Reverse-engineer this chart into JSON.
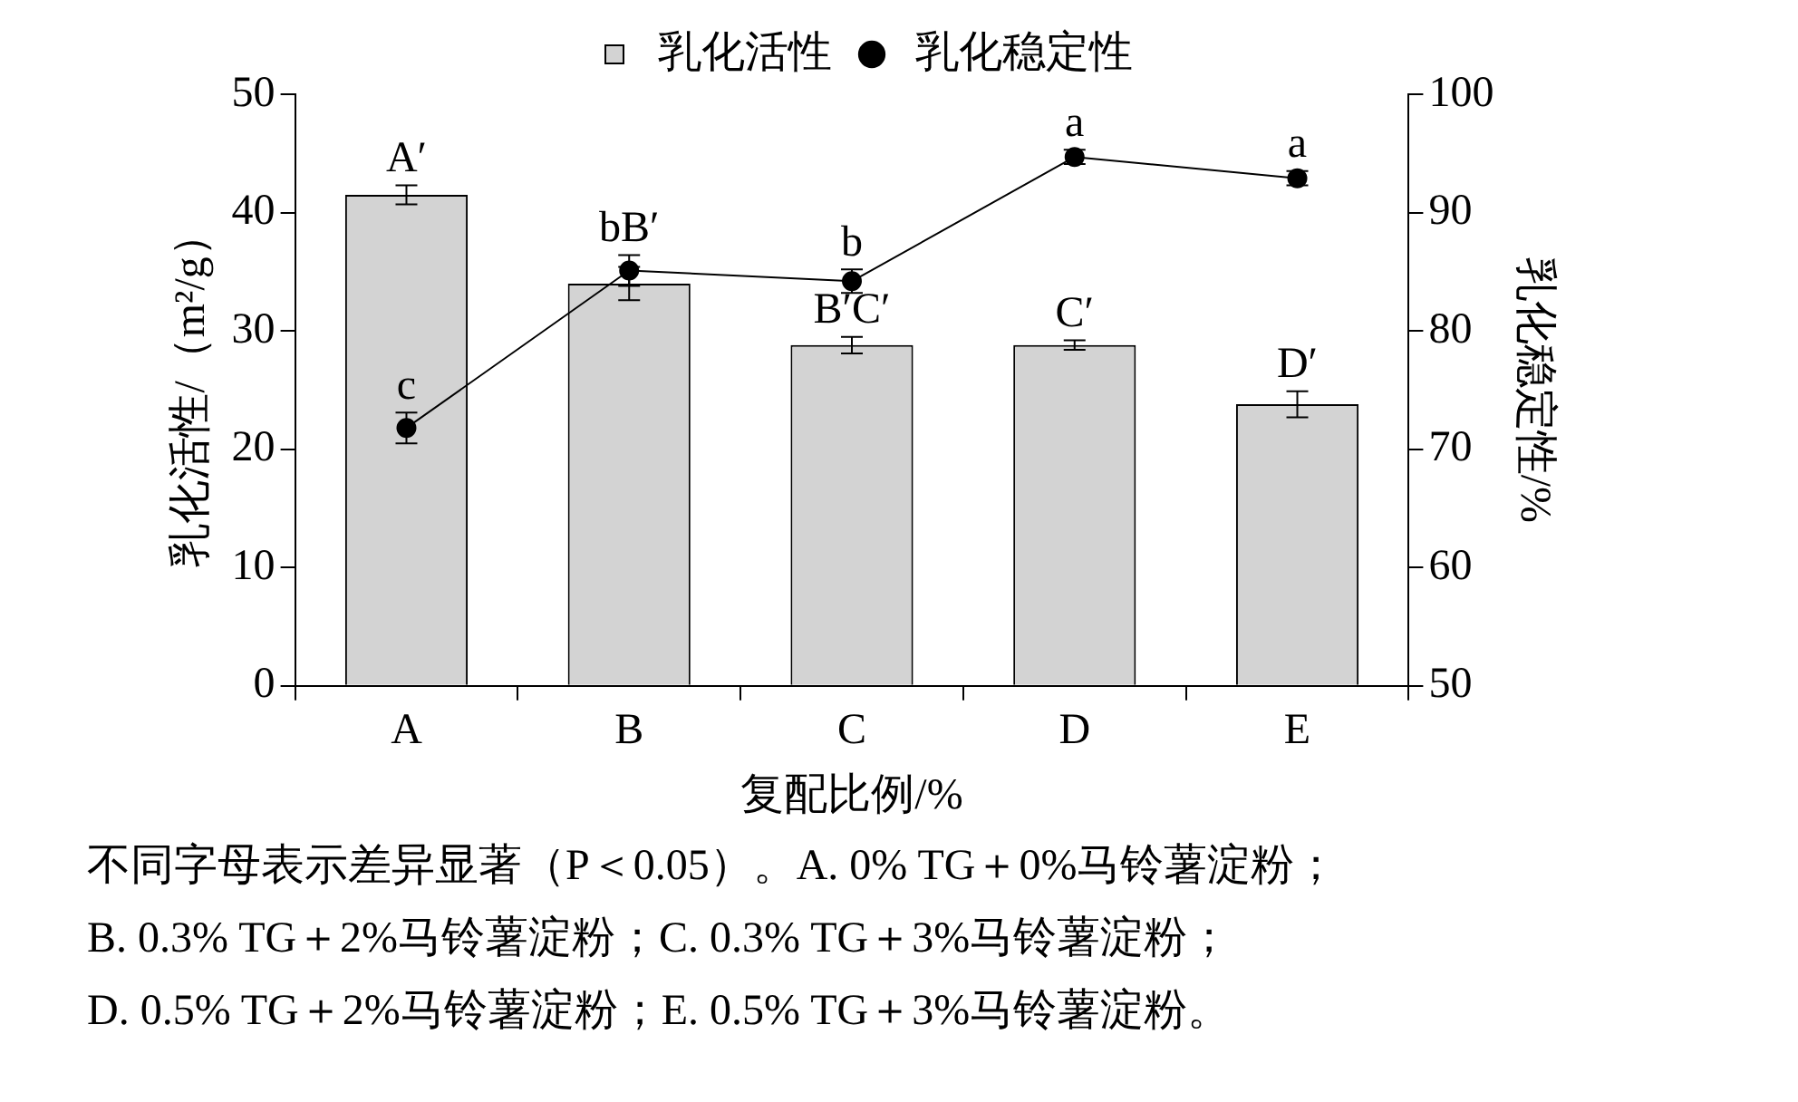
{
  "chart_data": {
    "type": "bar",
    "xlabel": "复配比例/%",
    "ylabel": "乳化活性/（m²/g）",
    "y2label": "乳化稳定性/%",
    "categories": [
      "A",
      "B",
      "C",
      "D",
      "E"
    ],
    "series": [
      {
        "name": "乳化活性",
        "color": "#d3d3d3",
        "values": [
          41.5,
          34.0,
          28.8,
          28.8,
          23.8
        ],
        "errors": [
          0.8,
          1.4,
          0.7,
          0.4,
          1.1
        ]
      },
      {
        "name": "乳化稳定性",
        "type": "line",
        "axis": "y2",
        "color": "#000000",
        "values": [
          71.8,
          85.1,
          84.2,
          94.7,
          92.9
        ],
        "errors": [
          1.3,
          1.3,
          1.0,
          0.6,
          0.6
        ],
        "marker": "circle",
        "line_style": "solid"
      }
    ],
    "ylim": [
      0,
      50
    ],
    "yticks": [
      0,
      10,
      20,
      30,
      40,
      50
    ],
    "y2lim": [
      50,
      100
    ],
    "y2ticks": [
      50,
      60,
      70,
      80,
      90,
      100
    ],
    "grid": false,
    "legend": "top",
    "annotations": [
      {
        "text": "A′",
        "x": "A",
        "y": 41.5
      },
      {
        "text": "B′C′",
        "x": "C",
        "y": 28.8
      },
      {
        "text": "C′",
        "x": "D",
        "y": 28.8
      },
      {
        "text": "D′",
        "x": "E",
        "y": 23.8
      },
      {
        "text": "c",
        "x": "A",
        "y": 21.8
      },
      {
        "text": "bB′",
        "x": "B",
        "y": 35.1
      },
      {
        "text": "b",
        "x": "C",
        "y": 34.2
      },
      {
        "text": "a",
        "x": "D",
        "y": 44.7
      },
      {
        "text": "a",
        "x": "E",
        "y": 42.9
      },
      "不同字母表示差异显著（P＜0.05）。A. 0% TG＋0%马铃薯淀粉；",
      "B. 0.3% TG＋2%马铃薯淀粉；C. 0.3% TG＋3%马铃薯淀粉；",
      "D. 0.5% TG＋2%马铃薯淀粉；E. 0.5% TG＋3%马铃薯淀粉。"
    ]
  }
}
